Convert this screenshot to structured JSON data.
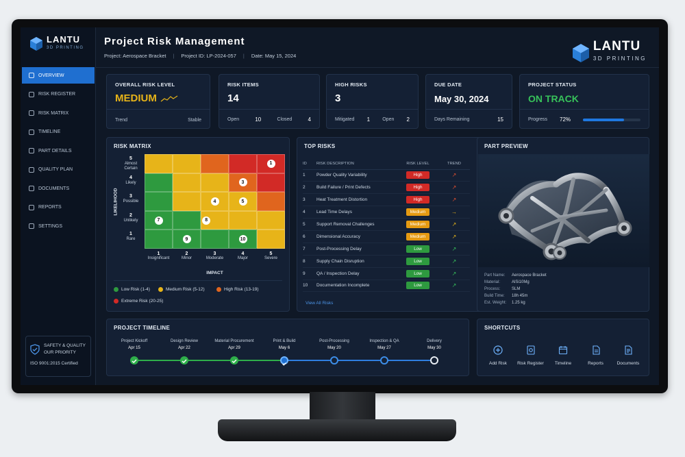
{
  "brand": {
    "name": "LANTU",
    "sub": "3D PRINTING"
  },
  "header": {
    "title": "Project Risk Management",
    "project": "Project: Aerospace Bracket",
    "project_id": "Project ID: LP-2024-057",
    "date": "Date: May 15, 2024"
  },
  "sidebar": {
    "items": [
      {
        "label": "OVERVIEW",
        "icon": "dashboard-icon",
        "active": true
      },
      {
        "label": "RISK REGISTER",
        "icon": "register-icon"
      },
      {
        "label": "RISK MATRIX",
        "icon": "grid-icon"
      },
      {
        "label": "TIMELINE",
        "icon": "timeline-icon"
      },
      {
        "label": "PART DETAILS",
        "icon": "part-icon"
      },
      {
        "label": "QUALITY PLAN",
        "icon": "quality-icon"
      },
      {
        "label": "DOCUMENTS",
        "icon": "document-icon"
      },
      {
        "label": "REPORTS",
        "icon": "report-icon"
      },
      {
        "label": "SETTINGS",
        "icon": "gear-icon"
      }
    ],
    "safety_line1": "SAFETY & QUALITY",
    "safety_line2": "OUR PRIORITY",
    "cert": "ISO 9001:2015 Certified"
  },
  "kpis": {
    "overall": {
      "label": "OVERALL RISK LEVEL",
      "value": "MEDIUM",
      "trend_label": "Trend",
      "trend_value": "Stable"
    },
    "items": {
      "label": "RISK ITEMS",
      "value": "14",
      "open_label": "Open",
      "open": "10",
      "closed_label": "Closed",
      "closed": "4"
    },
    "high": {
      "label": "HIGH RISKS",
      "value": "3",
      "mitigated_label": "Mitigated",
      "mitigated": "1",
      "open_label": "Open",
      "open": "2"
    },
    "due": {
      "label": "DUE DATE",
      "value": "May 30, 2024",
      "remaining_label": "Days Remaining",
      "remaining": "15"
    },
    "status": {
      "label": "PROJECT STATUS",
      "value": "ON TRACK",
      "progress_label": "Progress",
      "progress": "72%",
      "progress_fraction": 0.72
    }
  },
  "matrix": {
    "title": "RISK MATRIX",
    "y_title": "LIKELIHOOD",
    "x_title": "IMPACT",
    "likelihood": [
      {
        "n": "5",
        "t": "Almost Certain"
      },
      {
        "n": "4",
        "t": "Likely"
      },
      {
        "n": "3",
        "t": "Possible"
      },
      {
        "n": "2",
        "t": "Unlikely"
      },
      {
        "n": "1",
        "t": "Rare"
      }
    ],
    "impact": [
      {
        "n": "1",
        "t": "Insignificant"
      },
      {
        "n": "2",
        "t": "Minor"
      },
      {
        "n": "3",
        "t": "Moderate"
      },
      {
        "n": "4",
        "t": "Major"
      },
      {
        "n": "5",
        "t": "Severe"
      }
    ],
    "legend": [
      "Low Risk (1-4)",
      "Medium Risk (5-12)",
      "High Risk (13-19)",
      "Extreme Risk (20-25)"
    ],
    "colors": {
      "low": "#2e9a3f",
      "medium": "#e7b419",
      "high": "#e0651e",
      "extreme": "#d22a26"
    }
  },
  "top_risks": {
    "title": "TOP RISKS",
    "headers": [
      "ID",
      "RISK DESCRIPTION",
      "RISK LEVEL",
      "TREND"
    ],
    "rows": [
      {
        "id": "1",
        "desc": "Powder Quality Variability",
        "level": "High",
        "trend": "↗"
      },
      {
        "id": "2",
        "desc": "Build Failure / Print Defects",
        "level": "High",
        "trend": "↗"
      },
      {
        "id": "3",
        "desc": "Heat Treatment Distortion",
        "level": "High",
        "trend": "↗"
      },
      {
        "id": "4",
        "desc": "Lead Time Delays",
        "level": "Medium",
        "trend": "→"
      },
      {
        "id": "5",
        "desc": "Support Removal Challenges",
        "level": "Medium",
        "trend": "↗"
      },
      {
        "id": "6",
        "desc": "Dimensional Accuracy",
        "level": "Medium",
        "trend": "↗"
      },
      {
        "id": "7",
        "desc": "Post-Processing Delay",
        "level": "Low",
        "trend": "↗"
      },
      {
        "id": "8",
        "desc": "Supply Chain Disruption",
        "level": "Low",
        "trend": "↗"
      },
      {
        "id": "9",
        "desc": "QA / Inspection Delay",
        "level": "Low",
        "trend": "↗"
      },
      {
        "id": "10",
        "desc": "Documentation Incomplete",
        "level": "Low",
        "trend": "↗"
      }
    ],
    "view_all": "View All Risks"
  },
  "part": {
    "title": "PART PREVIEW",
    "specs": [
      {
        "k": "Part Name:",
        "v": "Aerospace Bracket"
      },
      {
        "k": "Material:",
        "v": "AlSi10Mg"
      },
      {
        "k": "Process:",
        "v": "SLM"
      },
      {
        "k": "Build Time:",
        "v": "18h 45m"
      },
      {
        "k": "Est. Weight:",
        "v": "1.25 kg"
      }
    ]
  },
  "timeline": {
    "title": "PROJECT TIMELINE",
    "stages": [
      {
        "name": "Project Kickoff",
        "date": "Apr 15",
        "state": "done"
      },
      {
        "name": "Design Review",
        "date": "Apr 22",
        "state": "done"
      },
      {
        "name": "Material Procurement",
        "date": "Apr 29",
        "state": "done"
      },
      {
        "name": "Print & Build",
        "date": "May 6",
        "state": "current"
      },
      {
        "name": "Post-Processing",
        "date": "May 20",
        "state": "upcoming"
      },
      {
        "name": "Inspection & QA",
        "date": "May 27",
        "state": "upcoming"
      },
      {
        "name": "Delivery",
        "date": "May 30",
        "state": "final"
      }
    ]
  },
  "shortcuts": {
    "title": "SHORTCUTS",
    "items": [
      "Add Risk",
      "Risk Register",
      "Timeline",
      "Reports",
      "Documents"
    ]
  }
}
